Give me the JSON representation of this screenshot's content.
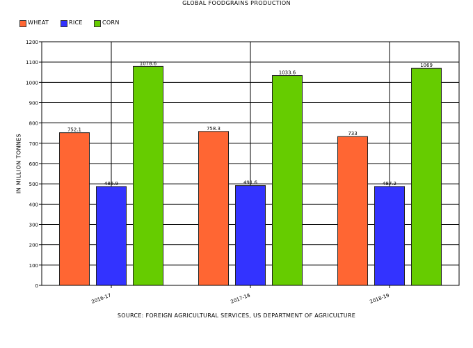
{
  "chart_data": {
    "type": "bar",
    "title": "Global Foodgrains Production",
    "xlabel": "",
    "ylabel": "In Million Tonnes",
    "source": "Source: Foreign Agricultural Services, US Department of Agriculture",
    "categories": [
      "2016-17",
      "2017-18",
      "2018-19"
    ],
    "series": [
      {
        "name": "Wheat",
        "color": "#ff6633",
        "values": [
          752.1,
          758.3,
          733
        ]
      },
      {
        "name": "Rice",
        "color": "#3333ff",
        "values": [
          486.9,
          491.6,
          487.2
        ]
      },
      {
        "name": "Corn",
        "color": "#66cc00",
        "values": [
          1078.6,
          1033.6,
          1069
        ]
      }
    ],
    "value_labels": [
      [
        "752.1",
        "758.3",
        "733"
      ],
      [
        "486.9",
        "491.6",
        "487.2"
      ],
      [
        "1078.6",
        "1033.6",
        "1069"
      ]
    ],
    "ylim": [
      0,
      1200
    ],
    "yticks": [
      0,
      100,
      200,
      300,
      400,
      500,
      600,
      700,
      800,
      900,
      1000,
      1100,
      1200
    ],
    "grid": true,
    "legend_position": "top-left"
  }
}
